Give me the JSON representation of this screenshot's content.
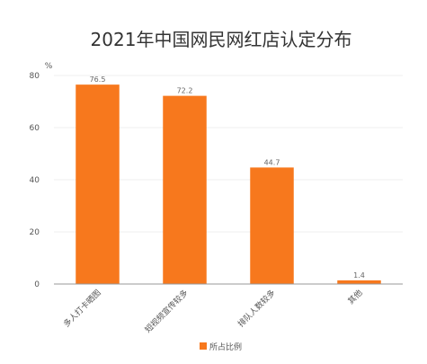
{
  "chart_data": {
    "type": "bar",
    "title": "2021年中国网民网红店认定分布",
    "ylabel": "%",
    "xlabel": "",
    "categories": [
      "多人打卡晒图",
      "短视频宣传较多",
      "排队人数较多",
      "其他"
    ],
    "series": [
      {
        "name": "所占比例",
        "values": [
          76.5,
          72.2,
          44.7,
          1.4
        ]
      }
    ],
    "data_labels": [
      "76.5",
      "72.2",
      "44.7",
      "1.4"
    ],
    "yticks": [
      0,
      20,
      40,
      60,
      80
    ],
    "ylim": [
      0,
      80
    ],
    "grid": true,
    "legend_position": "bottom-center",
    "colors": {
      "bar": "#f7781d",
      "grid": "#efefef",
      "axis": "#999999"
    }
  }
}
